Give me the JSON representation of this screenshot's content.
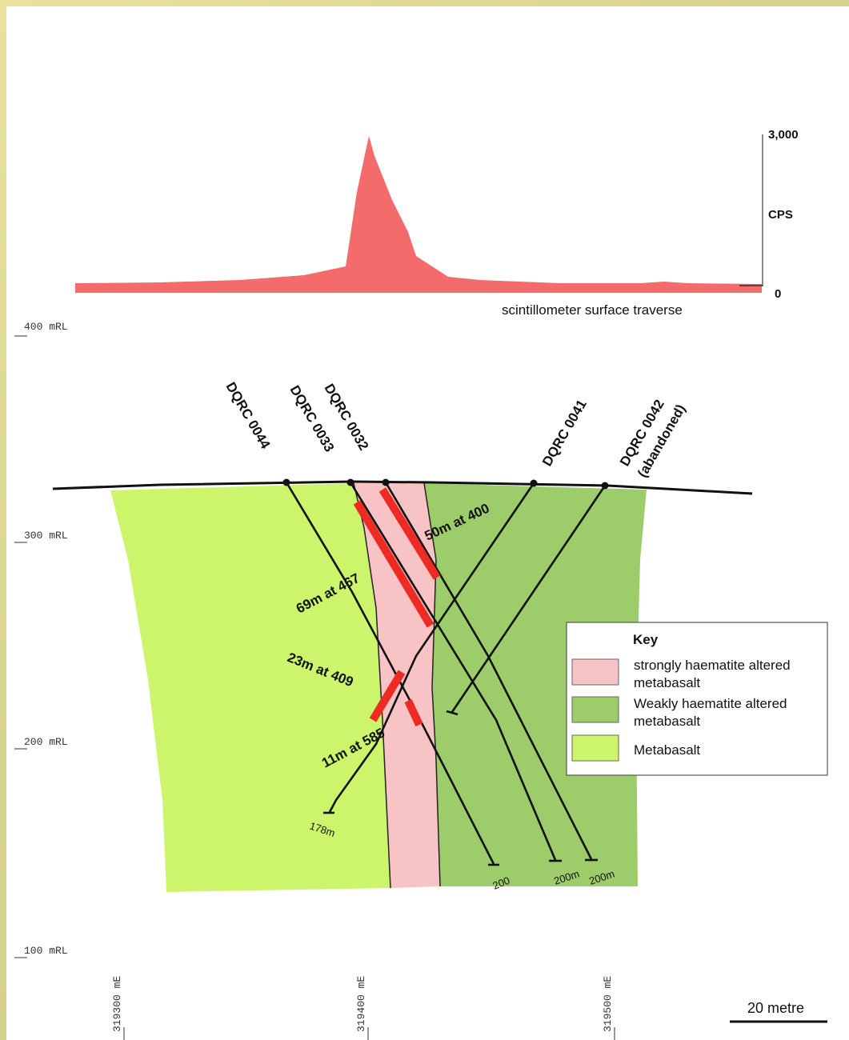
{
  "profile": {
    "axis_max": "3,000",
    "axis_unit": "CPS",
    "axis_zero": "0",
    "caption": "scintillometer surface traverse"
  },
  "elevations": [
    "400 mRL",
    "300 mRL",
    "200 mRL",
    "100 mRL"
  ],
  "eastings": [
    "319300 mE",
    "319400 mE",
    "319500 mE"
  ],
  "holes": [
    {
      "id": "DQRC 0044"
    },
    {
      "id": "DQRC 0033"
    },
    {
      "id": "DQRC 0032"
    },
    {
      "id": "DQRC 0041"
    },
    {
      "id": "DQRC 0042",
      "note": "(abandoned)"
    }
  ],
  "intercepts": [
    "50m at 400",
    "69m at 467",
    "23m at 409",
    "11m at 585"
  ],
  "depths": [
    "178m",
    "200",
    "200m",
    "200m"
  ],
  "key": {
    "title": "Key",
    "items": [
      {
        "label1": "strongly haematite altered",
        "label2": "metabasalt",
        "color": "#f7c3c4"
      },
      {
        "label1": "Weakly haematite altered",
        "label2": "metabasalt",
        "color": "#9dcc6b"
      },
      {
        "label1": "Metabasalt",
        "label2": "",
        "color": "#ccf56b"
      }
    ]
  },
  "scale": {
    "label": "20 metre"
  },
  "colors": {
    "profile_fill": "#f46b6b",
    "intercept": "#ee2a24",
    "strong": "#f7c3c4",
    "weak": "#9dcc6b",
    "meta": "#ccf56b"
  }
}
